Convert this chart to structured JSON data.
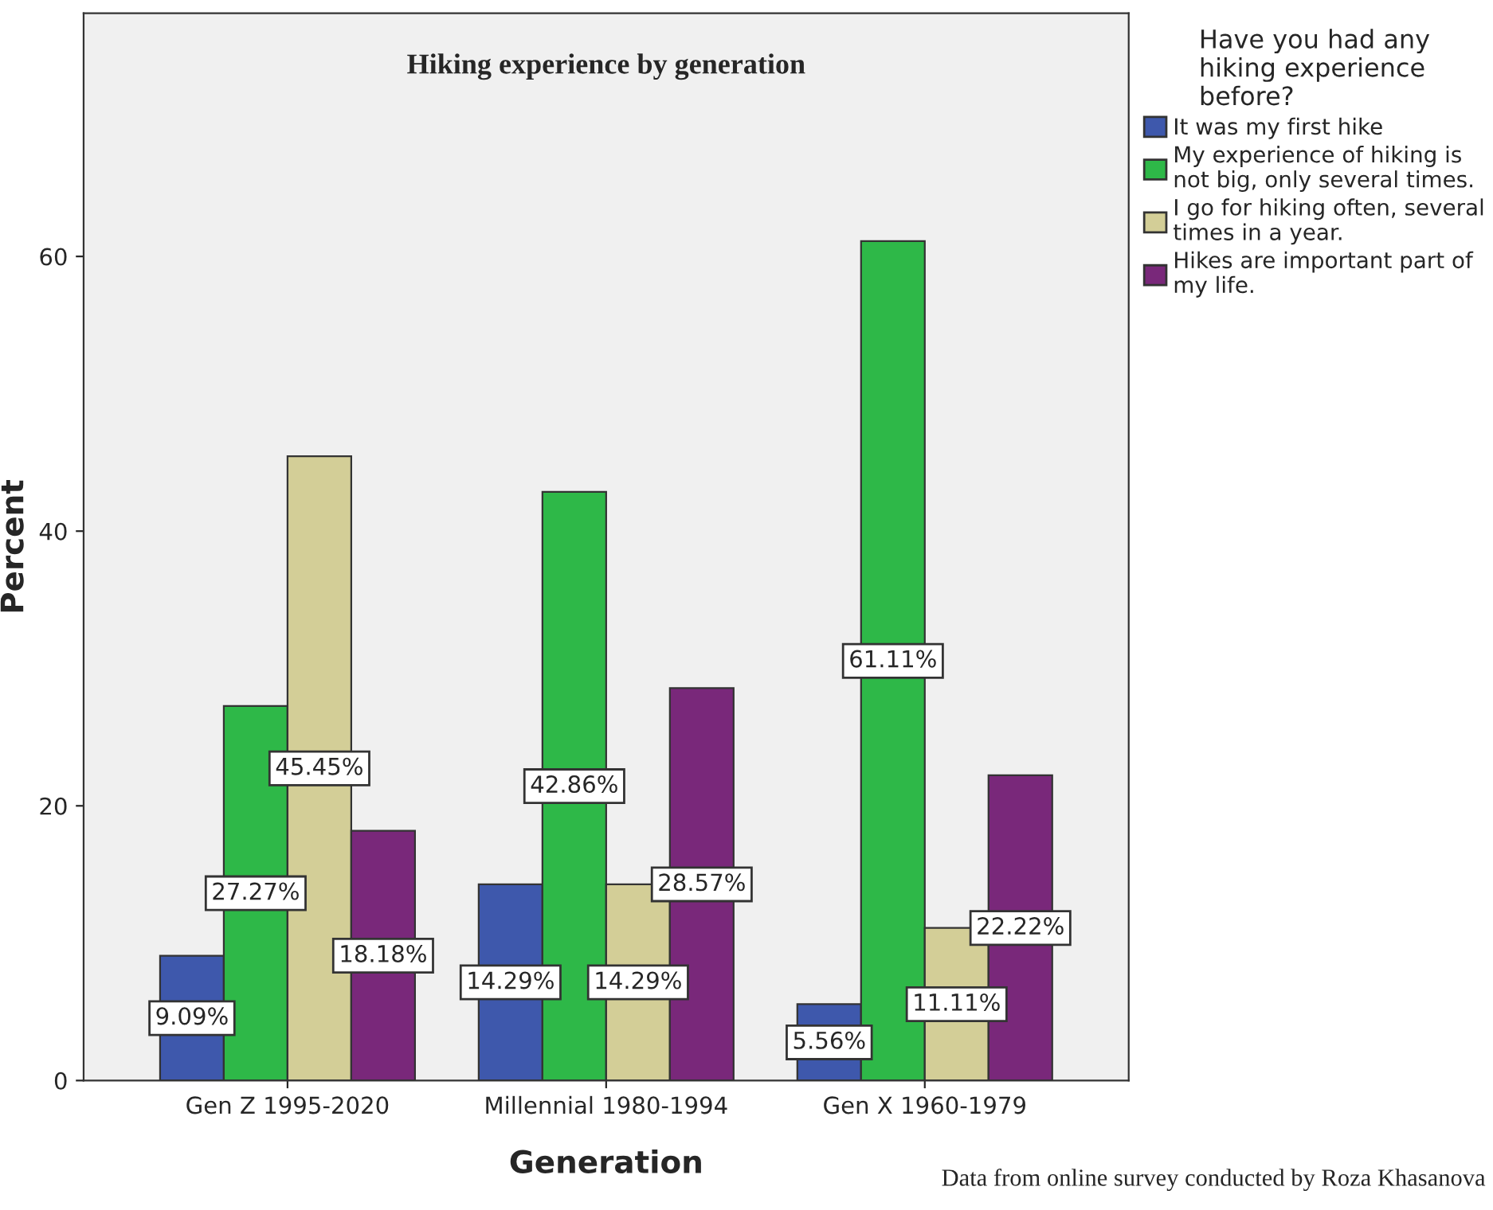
{
  "chart_data": {
    "type": "bar",
    "title": "Hiking experience by generation",
    "xlabel": "Generation",
    "ylabel": "Percent",
    "legend_title": "Have you had any\nhiking experience\nbefore?",
    "categories": [
      "Gen Z 1995-2020",
      "Millennial 1980-1994",
      "Gen X 1960-1979"
    ],
    "series": [
      {
        "name": "It was my first hike",
        "color": "#3e58ac",
        "values": [
          9.09,
          14.29,
          5.56
        ],
        "value_labels": [
          "9.09%",
          "14.29%",
          "5.56%"
        ]
      },
      {
        "name": "My experience of hiking is\nnot big, only several times.",
        "color": "#2eb848",
        "values": [
          27.27,
          42.86,
          61.11
        ],
        "value_labels": [
          "27.27%",
          "42.86%",
          "61.11%"
        ]
      },
      {
        "name": "I go for hiking often, several\ntimes in a year.",
        "color": "#d3ce97",
        "values": [
          45.45,
          14.29,
          11.11
        ],
        "value_labels": [
          "45.45%",
          "14.29%",
          "11.11%"
        ]
      },
      {
        "name": "Hikes are important part of\nmy life.",
        "color": "#79287a",
        "values": [
          18.18,
          28.57,
          22.22
        ],
        "value_labels": [
          "18.18%",
          "28.57%",
          "22.22%"
        ]
      }
    ],
    "ylim": [
      0,
      77.7
    ],
    "yticks": [
      0,
      20,
      40,
      60
    ],
    "grid": false,
    "legend": "top right",
    "annotations": [
      "Data from online survey conducted by Roza Khasanova"
    ]
  }
}
